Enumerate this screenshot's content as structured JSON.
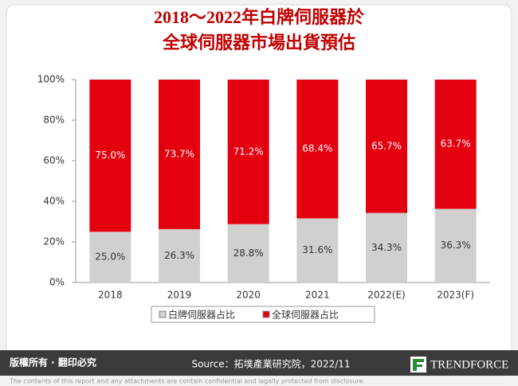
{
  "chart_data": {
    "type": "stacked_bar",
    "title": [
      "2018～2022年白牌伺服器於",
      "全球伺服器市場出貨預估"
    ],
    "categories": [
      "2018",
      "2019",
      "2020",
      "2021",
      "2022(E)",
      "2023(F)"
    ],
    "series": [
      {
        "name": "白牌伺服器占比",
        "color": "#d0d0d0",
        "values": [
          25.0,
          26.3,
          28.8,
          31.6,
          34.3,
          36.3
        ],
        "value_labels": [
          "25.0%",
          "26.3%",
          "28.8%",
          "31.6%",
          "34.3%",
          "36.3%"
        ]
      },
      {
        "name": "全球伺服器占比",
        "color": "#e3000f",
        "values": [
          75.0,
          73.7,
          71.2,
          68.4,
          65.7,
          63.7
        ],
        "value_labels": [
          "75.0%",
          "73.7%",
          "71.2%",
          "68.4%",
          "65.7%",
          "63.7%"
        ]
      }
    ],
    "ylim": [
      0,
      100
    ],
    "yticks": [
      {
        "value": 0,
        "label": "0%"
      },
      {
        "value": 20,
        "label": "20%"
      },
      {
        "value": 40,
        "label": "40%"
      },
      {
        "value": 60,
        "label": "60%"
      },
      {
        "value": 80,
        "label": "80%"
      },
      {
        "value": 100,
        "label": "100%"
      }
    ],
    "grid": false,
    "legend": "bottom"
  },
  "footer": {
    "rights": "版權所有 · 翻印必究",
    "source": "Source：拓墣產業研究院，2022/11",
    "logo": "TRENDFORCE",
    "disclaimer": "The contents of this report and any attachments are contain confidential and legally protected from disclosure."
  }
}
